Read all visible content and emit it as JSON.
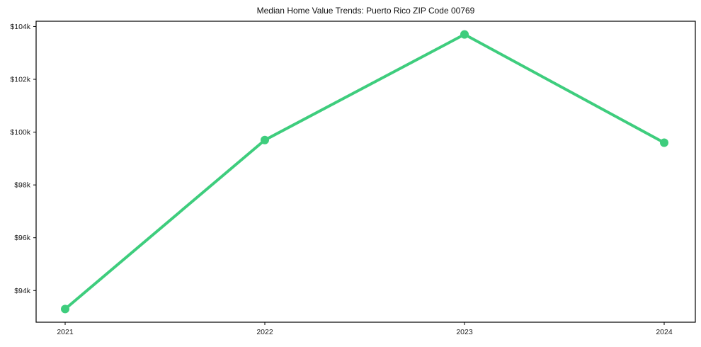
{
  "page": {
    "background_color": "#ffffff"
  },
  "chart": {
    "title": "Median Home Value Trends: Puerto Rico ZIP Code 00769",
    "line_color": "#3ecd7d",
    "marker_color": "#3ecd7d",
    "frame_color": "#000000",
    "tick_label_color": "#1a1a1a",
    "title_color": "#111111"
  },
  "chart_data": {
    "type": "line",
    "title": "Median Home Value Trends: Puerto Rico ZIP Code 00769",
    "series_name": "Median Home Value",
    "x": [
      2021,
      2022,
      2023,
      2024
    ],
    "x_tick_labels": [
      "2021",
      "2022",
      "2023",
      "2024"
    ],
    "values": [
      93.3,
      99.7,
      103.7,
      99.6
    ],
    "values_unit": "USD thousands",
    "values_usd": [
      93300,
      99700,
      103700,
      99600
    ],
    "y_ticks": [
      94,
      96,
      98,
      100,
      102,
      104
    ],
    "y_tick_labels": [
      "$94k",
      "$96k",
      "$98k",
      "$100k",
      "$102k",
      "$104k"
    ],
    "xlabel": "",
    "ylabel": "",
    "ylim": [
      92.8,
      104.2
    ],
    "grid": false,
    "legend": false,
    "marker": "circle",
    "line_width": 4,
    "marker_radius": 6
  }
}
